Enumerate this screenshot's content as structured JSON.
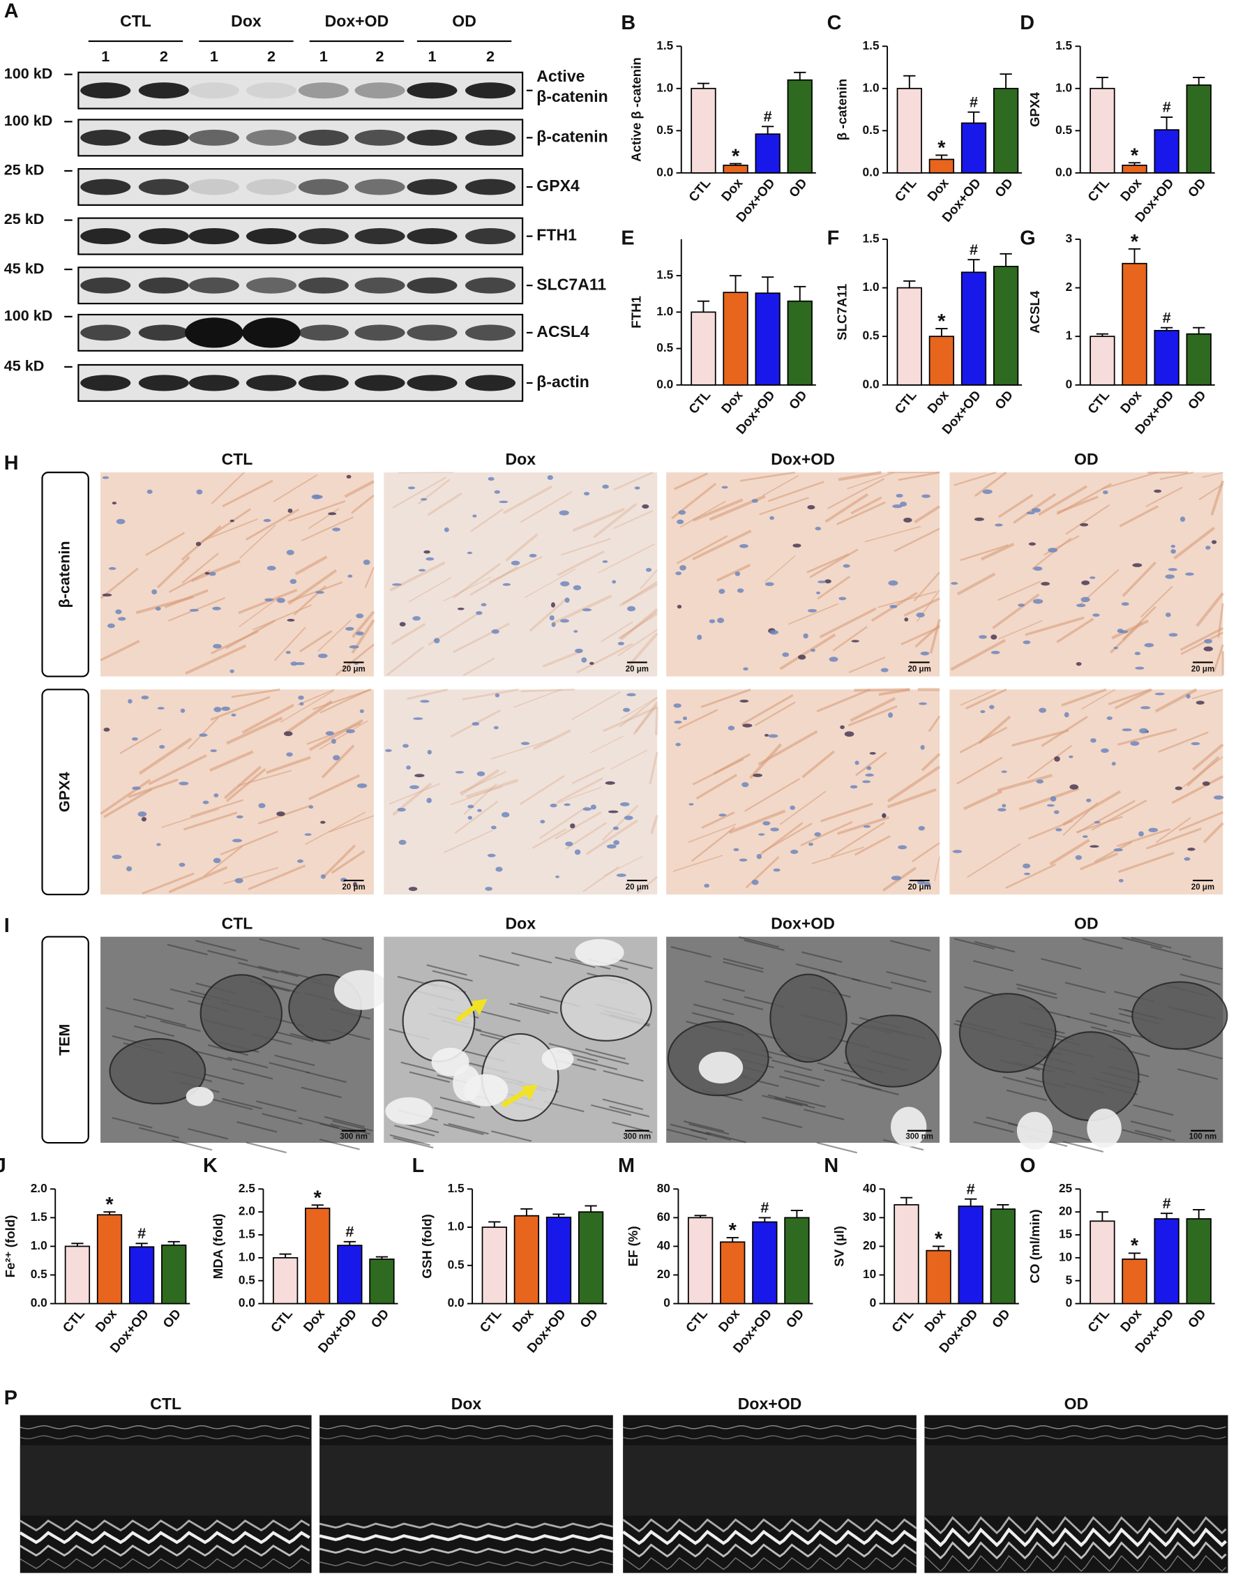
{
  "chart_data": [
    {
      "panel": "B",
      "type": "bar",
      "ylabel": "Active β -catenin",
      "categories": [
        "CTL",
        "Dox",
        "Dox+OD",
        "OD"
      ],
      "colors": [
        "#f6dcda",
        "#e8651d",
        "#1818ea",
        "#2e6a1f"
      ],
      "values": [
        1.0,
        0.09,
        0.46,
        1.1
      ],
      "errors": [
        0.06,
        0.02,
        0.09,
        0.09
      ],
      "markers": [
        null,
        "*",
        "#",
        null
      ],
      "ylim": [
        0,
        1.5
      ],
      "yticks": [
        {
          "value": 0,
          "label": "0.0"
        },
        0.5,
        {
          "value": 1,
          "label": "1.0"
        },
        1.5
      ]
    },
    {
      "panel": "C",
      "type": "bar",
      "ylabel": "β -catenin",
      "categories": [
        "CTL",
        "Dox",
        "Dox+OD",
        "OD"
      ],
      "colors": [
        "#f6dcda",
        "#e8651d",
        "#1818ea",
        "#2e6a1f"
      ],
      "values": [
        1.0,
        0.16,
        0.59,
        1.0
      ],
      "errors": [
        0.15,
        0.05,
        0.13,
        0.17
      ],
      "markers": [
        null,
        "*",
        "#",
        null
      ],
      "ylim": [
        0,
        1.5
      ],
      "yticks": [
        {
          "value": 0,
          "label": "0.0"
        },
        0.5,
        {
          "value": 1,
          "label": "1.0"
        },
        1.5
      ]
    },
    {
      "panel": "D",
      "type": "bar",
      "ylabel": "GPX4",
      "categories": [
        "CTL",
        "Dox",
        "Dox+OD",
        "OD"
      ],
      "colors": [
        "#f6dcda",
        "#e8651d",
        "#1818ea",
        "#2e6a1f"
      ],
      "values": [
        1.0,
        0.09,
        0.51,
        1.04
      ],
      "errors": [
        0.13,
        0.03,
        0.15,
        0.09
      ],
      "markers": [
        null,
        "*",
        "#",
        null
      ],
      "ylim": [
        0,
        1.5
      ],
      "yticks": [
        {
          "value": 0,
          "label": "0.0"
        },
        0.5,
        {
          "value": 1,
          "label": "1.0"
        },
        1.5
      ]
    },
    {
      "panel": "E",
      "type": "bar",
      "ylabel": "FTH1",
      "categories": [
        "CTL",
        "Dox",
        "Dox+OD",
        "OD"
      ],
      "colors": [
        "#f6dcda",
        "#e8651d",
        "#1818ea",
        "#2e6a1f"
      ],
      "values": [
        1.0,
        1.27,
        1.26,
        1.15
      ],
      "errors": [
        0.15,
        0.23,
        0.22,
        0.2
      ],
      "markers": [
        null,
        null,
        null,
        null
      ],
      "ylim": [
        0,
        2
      ],
      "yticks": [
        {
          "value": 0,
          "label": "0.0"
        },
        0.5,
        {
          "value": 1,
          "label": "1.0"
        },
        1.5
      ]
    },
    {
      "panel": "F",
      "type": "bar",
      "ylabel": "SLC7A11",
      "categories": [
        "CTL",
        "Dox",
        "Dox+OD",
        "OD"
      ],
      "colors": [
        "#f6dcda",
        "#e8651d",
        "#1818ea",
        "#2e6a1f"
      ],
      "values": [
        1.0,
        0.5,
        1.16,
        1.22
      ],
      "errors": [
        0.07,
        0.08,
        0.13,
        0.13
      ],
      "markers": [
        null,
        "*",
        "#",
        null
      ],
      "ylim": [
        0,
        1.5
      ],
      "yticks": [
        {
          "value": 0,
          "label": "0.0"
        },
        0.5,
        {
          "value": 1,
          "label": "1.0"
        },
        1.5
      ]
    },
    {
      "panel": "G",
      "type": "bar",
      "ylabel": "ACSL4",
      "categories": [
        "CTL",
        "Dox",
        "Dox+OD",
        "OD"
      ],
      "colors": [
        "#f6dcda",
        "#e8651d",
        "#1818ea",
        "#2e6a1f"
      ],
      "values": [
        1.0,
        2.5,
        1.12,
        1.05
      ],
      "errors": [
        0.05,
        0.3,
        0.06,
        0.13
      ],
      "markers": [
        null,
        "*",
        "#",
        null
      ],
      "ylim": [
        0,
        3
      ],
      "yticks": [
        0,
        1,
        2,
        3
      ]
    },
    {
      "panel": "J",
      "type": "bar",
      "ylabel": "Fe²⁺ (fold)",
      "categories": [
        "CTL",
        "Dox",
        "Dox+OD",
        "OD"
      ],
      "colors": [
        "#f6dcda",
        "#e8651d",
        "#1818ea",
        "#2e6a1f"
      ],
      "values": [
        1.0,
        1.55,
        0.99,
        1.02
      ],
      "errors": [
        0.05,
        0.05,
        0.06,
        0.06
      ],
      "markers": [
        null,
        "*",
        "#",
        null
      ],
      "ylim": [
        0,
        2
      ],
      "yticks": [
        {
          "value": 0,
          "label": "0.0"
        },
        0.5,
        {
          "value": 1,
          "label": "1.0"
        },
        1.5,
        {
          "value": 2,
          "label": "2.0"
        }
      ]
    },
    {
      "panel": "K",
      "type": "bar",
      "ylabel": "MDA (fold)",
      "categories": [
        "CTL",
        "Dox",
        "Dox+OD",
        "OD"
      ],
      "colors": [
        "#f6dcda",
        "#e8651d",
        "#1818ea",
        "#2e6a1f"
      ],
      "values": [
        1.0,
        2.08,
        1.27,
        0.97
      ],
      "errors": [
        0.08,
        0.07,
        0.08,
        0.05
      ],
      "markers": [
        null,
        "*",
        "#",
        null
      ],
      "ylim": [
        0,
        2.5
      ],
      "yticks": [
        {
          "value": 0,
          "label": "0.0"
        },
        0.5,
        {
          "value": 1,
          "label": "1.0"
        },
        1.5,
        {
          "value": 2,
          "label": "2.0"
        },
        2.5
      ]
    },
    {
      "panel": "L",
      "type": "bar",
      "ylabel": "GSH (fold)",
      "categories": [
        "CTL",
        "Dox",
        "Dox+OD",
        "OD"
      ],
      "colors": [
        "#f6dcda",
        "#e8651d",
        "#1818ea",
        "#2e6a1f"
      ],
      "values": [
        1.0,
        1.15,
        1.13,
        1.2
      ],
      "errors": [
        0.07,
        0.09,
        0.04,
        0.08
      ],
      "markers": [
        null,
        null,
        null,
        null
      ],
      "ylim": [
        0,
        1.5
      ],
      "yticks": [
        {
          "value": 0,
          "label": "0.0"
        },
        0.5,
        {
          "value": 1,
          "label": "1.0"
        },
        1.5
      ]
    },
    {
      "panel": "M",
      "type": "bar",
      "ylabel": "EF (%)",
      "categories": [
        "CTL",
        "Dox",
        "Dox+OD",
        "OD"
      ],
      "colors": [
        "#f6dcda",
        "#e8651d",
        "#1818ea",
        "#2e6a1f"
      ],
      "values": [
        60,
        43,
        57,
        60
      ],
      "errors": [
        1.5,
        3,
        3,
        5
      ],
      "markers": [
        null,
        "*",
        "#",
        null
      ],
      "ylim": [
        0,
        80
      ],
      "yticks": [
        0,
        20,
        40,
        60,
        80
      ]
    },
    {
      "panel": "N",
      "type": "bar",
      "ylabel": "SV (µl)",
      "categories": [
        "CTL",
        "Dox",
        "Dox+OD",
        "OD"
      ],
      "colors": [
        "#f6dcda",
        "#e8651d",
        "#1818ea",
        "#2e6a1f"
      ],
      "values": [
        34.5,
        18.5,
        34,
        33
      ],
      "errors": [
        2.5,
        1.5,
        2.5,
        1.5
      ],
      "markers": [
        null,
        "*",
        "#",
        null
      ],
      "ylim": [
        0,
        40
      ],
      "yticks": [
        0,
        10,
        20,
        30,
        40
      ]
    },
    {
      "panel": "O",
      "type": "bar",
      "ylabel": "CO (ml/min)",
      "categories": [
        "CTL",
        "Dox",
        "Dox+OD",
        "OD"
      ],
      "colors": [
        "#f6dcda",
        "#e8651d",
        "#1818ea",
        "#2e6a1f"
      ],
      "values": [
        18,
        9.7,
        18.5,
        18.5
      ],
      "errors": [
        2,
        1.3,
        1.2,
        2
      ],
      "markers": [
        null,
        "*",
        "#",
        null
      ],
      "ylim": [
        0,
        25
      ],
      "yticks": [
        0,
        5,
        10,
        15,
        20,
        25
      ]
    }
  ],
  "blot": {
    "panel": "A",
    "groups": [
      "CTL",
      "Dox",
      "Dox+OD",
      "OD"
    ],
    "lanes": [
      "1",
      "2"
    ],
    "rows": [
      {
        "size": "100 kD",
        "label_lines": [
          "Active",
          "β-catenin"
        ]
      },
      {
        "size": "100 kD",
        "label_lines": [
          "β-catenin"
        ]
      },
      {
        "size": "25 kD",
        "label_lines": [
          "GPX4"
        ]
      },
      {
        "size": "25 kD",
        "label_lines": [
          "FTH1"
        ]
      },
      {
        "size": "45 kD",
        "label_lines": [
          "SLC7A11"
        ]
      },
      {
        "size": "100 kD",
        "label_lines": [
          "ACSL4"
        ]
      },
      {
        "size": "45 kD",
        "label_lines": [
          "β-actin"
        ]
      }
    ]
  },
  "ihc": {
    "panel": "H",
    "columns": [
      "CTL",
      "Dox",
      "Dox+OD",
      "OD"
    ],
    "rows": [
      "β-catenin",
      "GPX4"
    ],
    "scale_bar": "20 μm"
  },
  "tem": {
    "panel": "I",
    "columns": [
      "CTL",
      "Dox",
      "Dox+OD",
      "OD"
    ],
    "row": "TEM",
    "scale_bars": [
      "300 nm",
      "300 nm",
      "300 nm",
      "100 nm"
    ]
  },
  "echo": {
    "panel": "P",
    "columns": [
      "CTL",
      "Dox",
      "Dox+OD",
      "OD"
    ]
  }
}
